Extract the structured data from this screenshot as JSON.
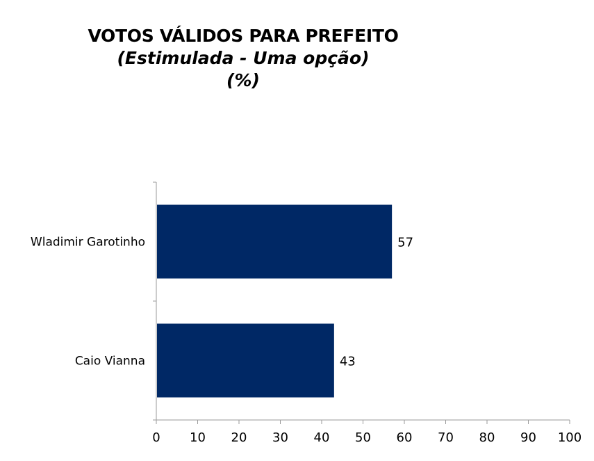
{
  "chart_data": {
    "type": "bar",
    "orientation": "horizontal",
    "title": "VOTOS VÁLIDOS PARA PREFEITO",
    "subtitle": "(Estimulada - Uma opção)",
    "unit_line": "(%)",
    "categories": [
      "Wladimir Garotinho",
      "Caio Vianna"
    ],
    "values": [
      57,
      43
    ],
    "data_labels": [
      "57",
      "43"
    ],
    "xlim": [
      0,
      100
    ],
    "xticks": [
      "0",
      "10",
      "20",
      "30",
      "40",
      "50",
      "60",
      "70",
      "80",
      "90",
      "100"
    ],
    "xlabel": "",
    "ylabel": "",
    "grid": false,
    "legend": "none",
    "bar_color": "#002865"
  }
}
